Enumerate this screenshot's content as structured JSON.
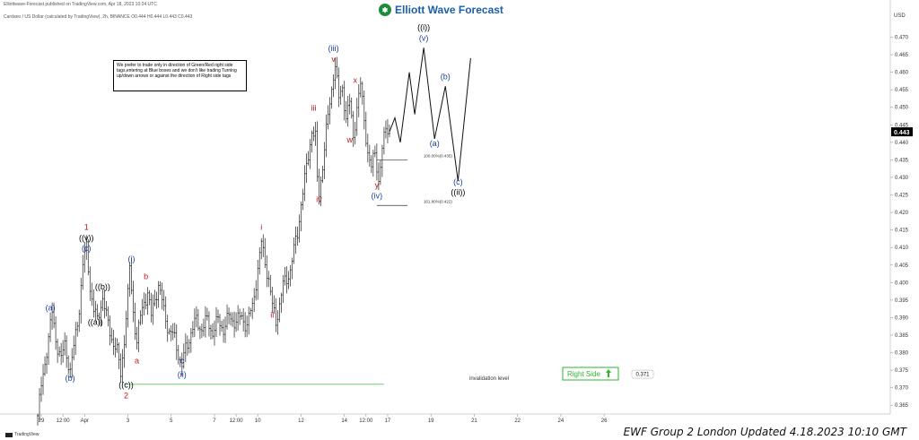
{
  "header": {
    "publisher_line": "Elliottwave-Forecast published on TradingView.com, Apr 18, 2023 10:24 UTC",
    "symbol_line": "Cardano / US Dollar (calculated by TradingView), 2h, BINANCE  O0.444  H0.444  L0.443  C0.443"
  },
  "logo": {
    "text": "Elliott Wave Forecast",
    "icon": "ewf-logo-icon"
  },
  "note": "We prefer to trade only in direction of Green/Red right side tags,entering at Blue boxes and we don't like trading Turning up/down arrows or against the direction of Right side tags",
  "footer": "EWF Group 2 London Updated 4.18.2023 10:10 GMT",
  "tradingview": "TradingView",
  "chart_data": {
    "type": "line",
    "title": "",
    "ylabel": "USD",
    "xlabel": "",
    "ylim": [
      0.3625,
      0.4755
    ],
    "x_ticks": [
      {
        "i": 2,
        "label": "29"
      },
      {
        "i": 14,
        "label": "12:00"
      },
      {
        "i": 26,
        "label": "Apr"
      },
      {
        "i": 50,
        "label": "3"
      },
      {
        "i": 74,
        "label": "5"
      },
      {
        "i": 98,
        "label": "7"
      },
      {
        "i": 110,
        "label": "12:00"
      },
      {
        "i": 122,
        "label": "10"
      },
      {
        "i": 146,
        "label": "12"
      },
      {
        "i": 170,
        "label": "14"
      },
      {
        "i": 182,
        "label": "12:00"
      },
      {
        "i": 194,
        "label": "17"
      },
      {
        "i": 218,
        "label": "19"
      },
      {
        "i": 242,
        "label": "21"
      },
      {
        "i": 266,
        "label": "22"
      },
      {
        "i": 290,
        "label": "24"
      },
      {
        "i": 314,
        "label": "26"
      }
    ],
    "y_ticks": [
      "0.470",
      "0.465",
      "0.460",
      "0.455",
      "0.450",
      "0.445",
      "0.440",
      "0.435",
      "0.430",
      "0.425",
      "0.420",
      "0.415",
      "0.410",
      "0.405",
      "0.400",
      "0.395",
      "0.390",
      "0.385",
      "0.380",
      "0.375",
      "0.370",
      "0.365"
    ],
    "price_anchors": [
      [
        0,
        0.362
      ],
      [
        2,
        0.37
      ],
      [
        5,
        0.381
      ],
      [
        8,
        0.391
      ],
      [
        10,
        0.384
      ],
      [
        13,
        0.378
      ],
      [
        15,
        0.382
      ],
      [
        18,
        0.375
      ],
      [
        20,
        0.381
      ],
      [
        23,
        0.393
      ],
      [
        25,
        0.405
      ],
      [
        27,
        0.41
      ],
      [
        29,
        0.399
      ],
      [
        31,
        0.392
      ],
      [
        33,
        0.389
      ],
      [
        35,
        0.394
      ],
      [
        36,
        0.396
      ],
      [
        38,
        0.39
      ],
      [
        40,
        0.386
      ],
      [
        42,
        0.383
      ],
      [
        44,
        0.38
      ],
      [
        46,
        0.374
      ],
      [
        48,
        0.384
      ],
      [
        50,
        0.396
      ],
      [
        51,
        0.404
      ],
      [
        53,
        0.392
      ],
      [
        55,
        0.383
      ],
      [
        57,
        0.39
      ],
      [
        59,
        0.395
      ],
      [
        61,
        0.397
      ],
      [
        63,
        0.39
      ],
      [
        65,
        0.396
      ],
      [
        67,
        0.399
      ],
      [
        70,
        0.392
      ],
      [
        73,
        0.386
      ],
      [
        76,
        0.384
      ],
      [
        78,
        0.38
      ],
      [
        80,
        0.376
      ],
      [
        82,
        0.381
      ],
      [
        85,
        0.386
      ],
      [
        88,
        0.389
      ],
      [
        91,
        0.387
      ],
      [
        94,
        0.389
      ],
      [
        97,
        0.386
      ],
      [
        100,
        0.389
      ],
      [
        103,
        0.387
      ],
      [
        106,
        0.39
      ],
      [
        110,
        0.389
      ],
      [
        113,
        0.39
      ],
      [
        116,
        0.388
      ],
      [
        119,
        0.393
      ],
      [
        122,
        0.404
      ],
      [
        124,
        0.411
      ],
      [
        126,
        0.406
      ],
      [
        128,
        0.401
      ],
      [
        130,
        0.393
      ],
      [
        132,
        0.389
      ],
      [
        134,
        0.394
      ],
      [
        136,
        0.399
      ],
      [
        138,
        0.401
      ],
      [
        140,
        0.404
      ],
      [
        142,
        0.409
      ],
      [
        144,
        0.414
      ],
      [
        146,
        0.423
      ],
      [
        148,
        0.429
      ],
      [
        150,
        0.436
      ],
      [
        152,
        0.444
      ],
      [
        154,
        0.441
      ],
      [
        155,
        0.429
      ],
      [
        156,
        0.425
      ],
      [
        158,
        0.434
      ],
      [
        160,
        0.443
      ],
      [
        162,
        0.451
      ],
      [
        164,
        0.46
      ],
      [
        165,
        0.462
      ],
      [
        167,
        0.452
      ],
      [
        169,
        0.456
      ],
      [
        171,
        0.447
      ],
      [
        173,
        0.451
      ],
      [
        175,
        0.442
      ],
      [
        177,
        0.45
      ],
      [
        179,
        0.456
      ],
      [
        181,
        0.447
      ],
      [
        183,
        0.437
      ],
      [
        185,
        0.432
      ],
      [
        187,
        0.438
      ],
      [
        189,
        0.429
      ],
      [
        191,
        0.437
      ],
      [
        193,
        0.445
      ],
      [
        195,
        0.443
      ]
    ],
    "projection": [
      [
        195,
        0.443
      ],
      [
        198,
        0.447
      ],
      [
        201,
        0.44
      ],
      [
        206,
        0.46
      ],
      [
        209,
        0.448
      ],
      [
        214,
        0.467
      ],
      [
        220,
        0.441
      ],
      [
        226,
        0.456
      ],
      [
        233,
        0.429
      ],
      [
        240,
        0.464
      ]
    ],
    "fib_levels": [
      {
        "label": "100.00%(0.435)",
        "value": 0.435,
        "i_from": 188,
        "i_to": 205
      },
      {
        "label": "161.80%(0.422)",
        "value": 0.422,
        "i_from": 188,
        "i_to": 205
      }
    ],
    "invalidation": {
      "label": "invalidation level",
      "value": 0.371,
      "i_from": 48,
      "i_to": 192
    },
    "tag": {
      "label": "Right Side",
      "value_label": "0.371"
    },
    "current_price": "0.443",
    "wave_labels": [
      {
        "text": "(a)",
        "i": 7,
        "y": 0.392,
        "color": "#1c3f9e"
      },
      {
        "text": "(b)",
        "i": 18,
        "y": 0.372,
        "color": "#1c3f9e"
      },
      {
        "text": "1",
        "i": 27,
        "y": 0.415,
        "color": "#c0161b"
      },
      {
        "text": "((v))",
        "i": 27,
        "y": 0.412,
        "color": "#000000"
      },
      {
        "text": "(c)",
        "i": 27,
        "y": 0.409,
        "color": "#1c3f9e"
      },
      {
        "text": "((b))",
        "i": 36,
        "y": 0.398,
        "color": "#000000"
      },
      {
        "text": "((a))",
        "i": 32,
        "y": 0.388,
        "color": "#000000"
      },
      {
        "text": "((c))",
        "i": 49,
        "y": 0.37,
        "color": "#000000"
      },
      {
        "text": "2",
        "i": 49,
        "y": 0.367,
        "color": "#c0161b"
      },
      {
        "text": "(i)",
        "i": 52,
        "y": 0.406,
        "color": "#1c3f9e"
      },
      {
        "text": "b",
        "i": 60,
        "y": 0.401,
        "color": "#c0161b"
      },
      {
        "text": "a",
        "i": 55,
        "y": 0.377,
        "color": "#c0161b"
      },
      {
        "text": "c",
        "i": 80,
        "y": 0.377,
        "color": "#1c3f9e"
      },
      {
        "text": "(ii)",
        "i": 80,
        "y": 0.373,
        "color": "#1c3f9e"
      },
      {
        "text": "i",
        "i": 124,
        "y": 0.415,
        "color": "#c0161b"
      },
      {
        "text": "ii",
        "i": 130,
        "y": 0.39,
        "color": "#c0161b"
      },
      {
        "text": "iii",
        "i": 153,
        "y": 0.449,
        "color": "#c0161b"
      },
      {
        "text": "iv",
        "i": 156,
        "y": 0.423,
        "color": "#c0161b"
      },
      {
        "text": "(iii)",
        "i": 164,
        "y": 0.466,
        "color": "#1c3f9e"
      },
      {
        "text": "v",
        "i": 164,
        "y": 0.463,
        "color": "#c0161b"
      },
      {
        "text": "x",
        "i": 176,
        "y": 0.457,
        "color": "#c0161b"
      },
      {
        "text": "w",
        "i": 173,
        "y": 0.44,
        "color": "#c0161b"
      },
      {
        "text": "y",
        "i": 188,
        "y": 0.427,
        "color": "#c0161b"
      },
      {
        "text": "(iv)",
        "i": 188,
        "y": 0.424,
        "color": "#1c3f9e"
      },
      {
        "text": "((i))",
        "i": 214,
        "y": 0.472,
        "color": "#000000"
      },
      {
        "text": "(v)",
        "i": 214,
        "y": 0.469,
        "color": "#1c3f9e"
      },
      {
        "text": "(b)",
        "i": 226,
        "y": 0.458,
        "color": "#1c3f9e"
      },
      {
        "text": "(a)",
        "i": 220,
        "y": 0.439,
        "color": "#1c3f9e"
      },
      {
        "text": "(c)",
        "i": 233,
        "y": 0.428,
        "color": "#1c3f9e"
      },
      {
        "text": "((ii))",
        "i": 233,
        "y": 0.425,
        "color": "#000000"
      }
    ],
    "colors": {
      "candle": "#222222",
      "projection": "#111111",
      "invalidation": "#8ed68e",
      "tag_border": "#2db52d",
      "tag_text": "#2db52d",
      "price_bg": "#000000"
    }
  }
}
